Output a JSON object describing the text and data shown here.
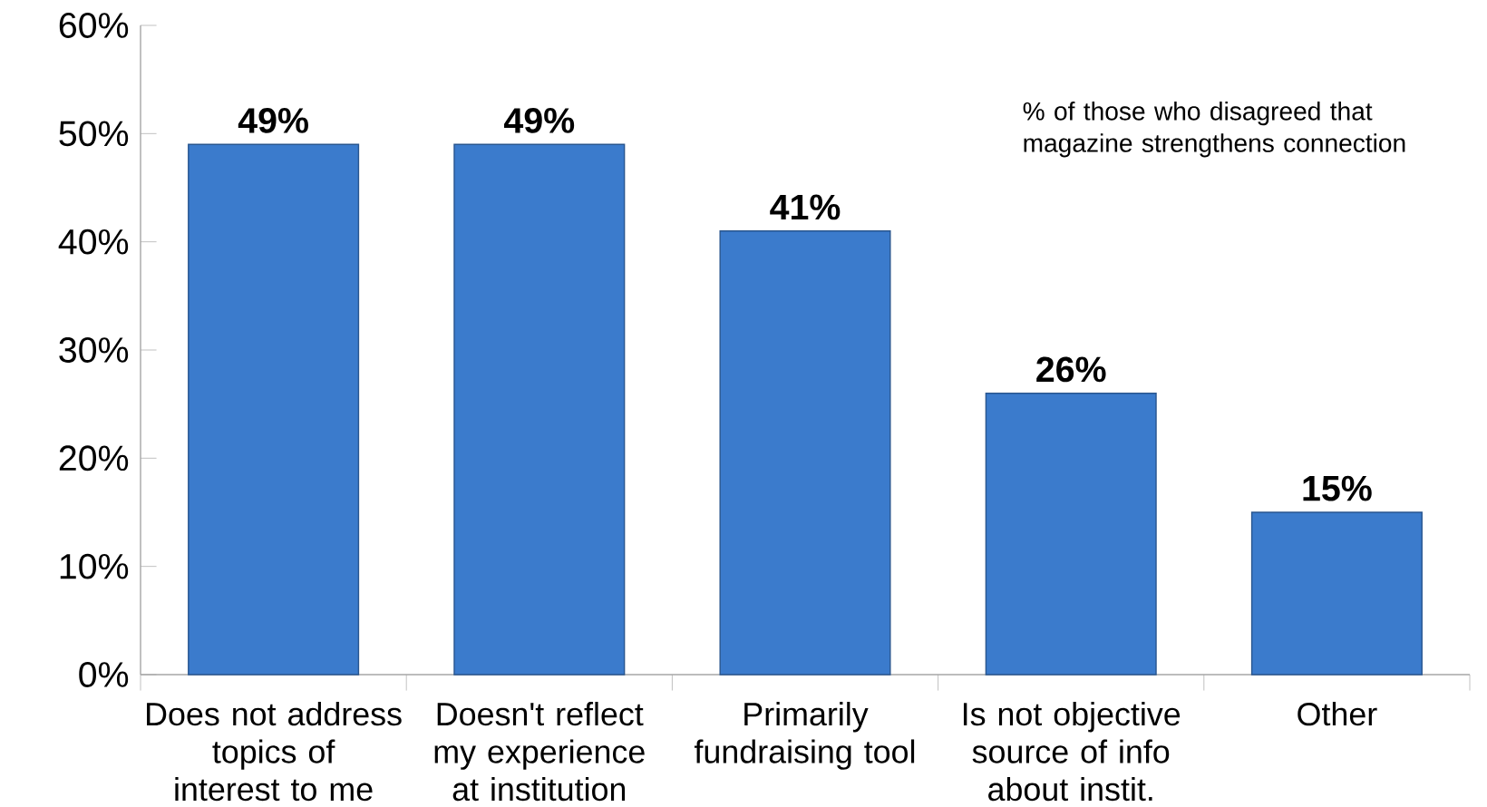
{
  "chart_data": {
    "type": "bar",
    "categories": [
      "Does not address topics of interest to me",
      "Doesn't reflect my experience at institution",
      "Primarily fundraising tool",
      "Is not objective source of info about instit.",
      "Other"
    ],
    "values": [
      49,
      49,
      41,
      26,
      15
    ],
    "value_labels": [
      "49%",
      "49%",
      "41%",
      "26%",
      "15%"
    ],
    "color": "#3b7bcc",
    "ylim": [
      0,
      60
    ],
    "yticks": [
      {
        "value": 0,
        "label": "0%"
      },
      {
        "value": 10,
        "label": "10%"
      },
      {
        "value": 20,
        "label": "20%"
      },
      {
        "value": 30,
        "label": "30%"
      },
      {
        "value": 40,
        "label": "40%"
      },
      {
        "value": 50,
        "label": "50%"
      },
      {
        "value": 60,
        "label": "60%"
      }
    ],
    "annotations": [
      "% of those who disagreed that magazine strengthens connection"
    ]
  }
}
